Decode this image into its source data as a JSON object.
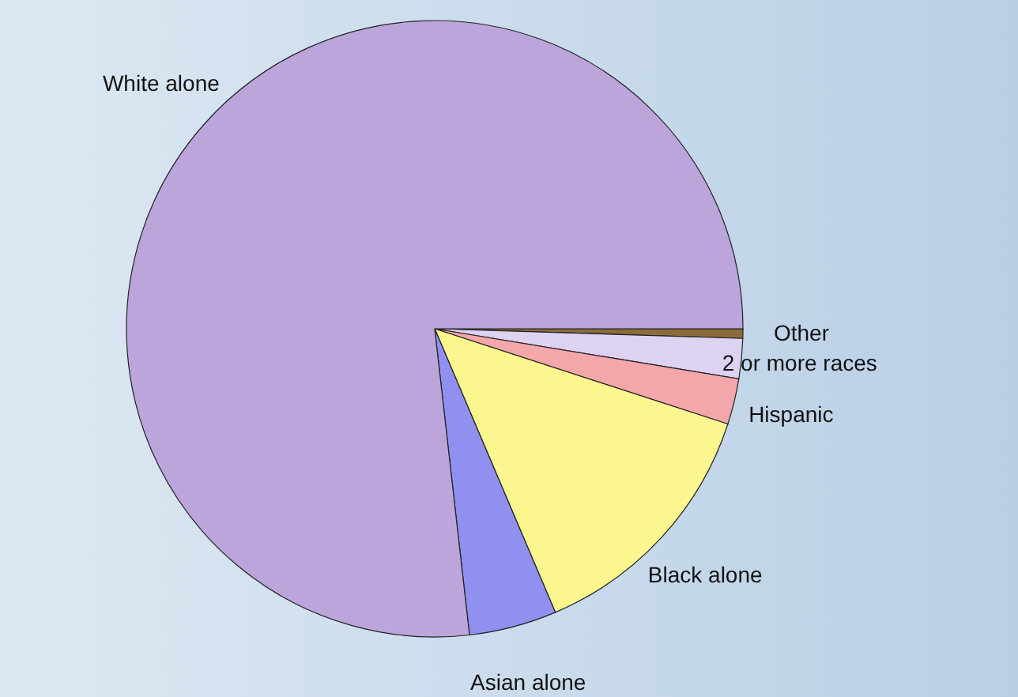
{
  "chart_data": {
    "type": "pie",
    "categories": [
      "Other",
      "2 or more races",
      "Hispanic",
      "Black alone",
      "Asian alone",
      "White alone"
    ],
    "values": [
      0.5,
      2.1,
      2.4,
      13.6,
      4.6,
      76.8
    ],
    "colors": [
      "#8b6b3a",
      "#ddd2f2",
      "#f4a7aa",
      "#fbf68e",
      "#9090f0",
      "#bba5da"
    ]
  }
}
